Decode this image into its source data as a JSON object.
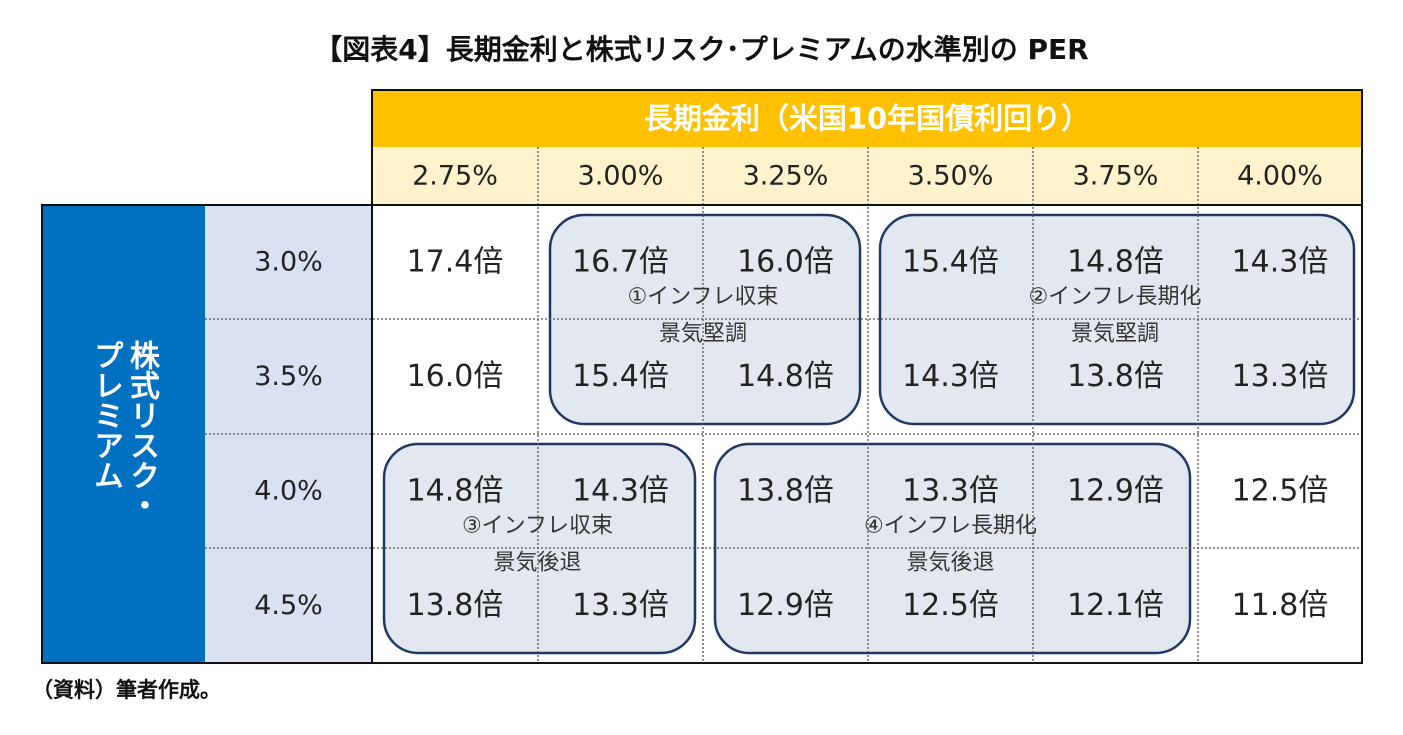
{
  "title": "【図表4】長期金利と株式リスク･プレミアムの水準別の PER",
  "source": "（資料）筆者作成。",
  "chart_data": {
    "type": "table",
    "col_header": "長期金利（米国10年国債利回り）",
    "row_header": "株式リスク・プレミアム",
    "columns": [
      "2.75%",
      "3.00%",
      "3.25%",
      "3.50%",
      "3.75%",
      "4.00%"
    ],
    "rows": [
      "3.0%",
      "3.5%",
      "4.0%",
      "4.5%"
    ],
    "values": [
      [
        "17.4倍",
        "16.7倍",
        "16.0倍",
        "15.4倍",
        "14.8倍",
        "14.3倍"
      ],
      [
        "16.0倍",
        "15.4倍",
        "14.8倍",
        "14.3倍",
        "13.8倍",
        "13.3倍"
      ],
      [
        "14.8倍",
        "14.3倍",
        "13.8倍",
        "13.3倍",
        "12.9倍",
        "12.5倍"
      ],
      [
        "13.8倍",
        "13.3倍",
        "12.9倍",
        "12.5倍",
        "12.1倍",
        "11.8倍"
      ]
    ],
    "scenarios": [
      {
        "name": "①インフレ収束",
        "sub": "景気堅調",
        "rows": [
          0,
          1
        ],
        "cols": [
          1,
          2
        ]
      },
      {
        "name": "②インフレ長期化",
        "sub": "景気堅調",
        "rows": [
          0,
          1
        ],
        "cols": [
          3,
          5
        ]
      },
      {
        "name": "③インフレ収束",
        "sub": "景気後退",
        "rows": [
          2,
          3
        ],
        "cols": [
          0,
          1
        ]
      },
      {
        "name": "④インフレ長期化",
        "sub": "景気後退",
        "rows": [
          2,
          3
        ],
        "cols": [
          2,
          4
        ]
      }
    ],
    "colors": {
      "header_orange": "#FFC000",
      "header_light": "#FFF2CC",
      "row_label_blue": "#0070C0",
      "row_value_bg": "#D9E1F2",
      "scenario_fill": "#E3E8F0",
      "scenario_border": "#1F3864"
    }
  }
}
